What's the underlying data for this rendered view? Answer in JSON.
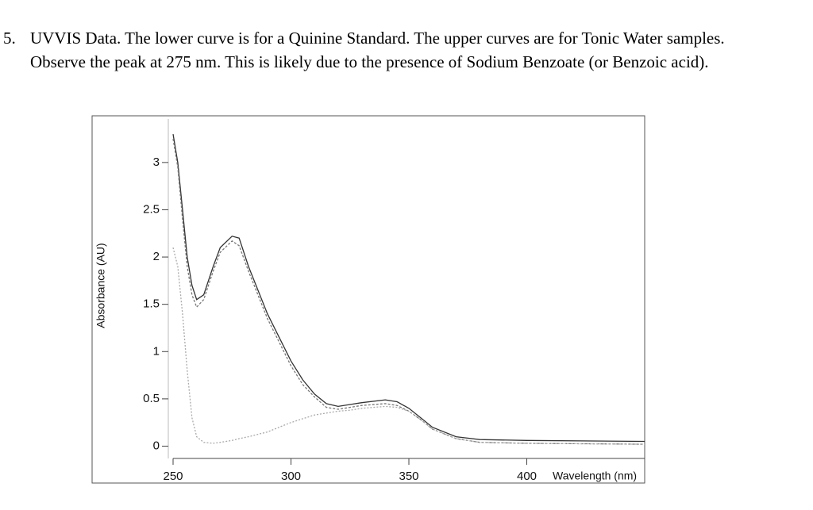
{
  "question": {
    "number": "5.",
    "lines": [
      "UVVIS Data.  The lower curve is for a Quinine Standard.  The upper curves are for Tonic Water samples.",
      "Observe the peak at 275 nm.  This is likely due to the presence of Sodium Benzoate (or Benzoic acid)."
    ]
  },
  "chart_data": {
    "type": "line",
    "x_label": "Wavelength (nm)",
    "y_label": "Absorbance (AU)",
    "x": [
      250,
      252,
      254,
      256,
      258,
      260,
      263,
      267,
      270,
      275,
      278,
      282,
      290,
      300,
      305,
      310,
      315,
      320,
      325,
      330,
      340,
      345,
      350,
      355,
      360,
      370,
      380,
      400,
      450
    ],
    "series": [
      {
        "color": "#333333",
        "dash": "none",
        "values": [
          3.3,
          3.0,
          2.5,
          2.0,
          1.7,
          1.55,
          1.6,
          1.9,
          2.1,
          2.22,
          2.2,
          1.9,
          1.4,
          0.9,
          0.7,
          0.55,
          0.45,
          0.42,
          0.44,
          0.46,
          0.49,
          0.47,
          0.4,
          0.3,
          0.2,
          0.1,
          0.07,
          0.06,
          0.05
        ]
      },
      {
        "color": "#777777",
        "dash": "3 2",
        "values": [
          3.25,
          2.95,
          2.4,
          1.9,
          1.6,
          1.47,
          1.55,
          1.85,
          2.05,
          2.17,
          2.12,
          1.85,
          1.35,
          0.85,
          0.65,
          0.52,
          0.41,
          0.39,
          0.41,
          0.43,
          0.45,
          0.43,
          0.37,
          0.28,
          0.18,
          0.08,
          0.04,
          0.03,
          0.02
        ]
      },
      {
        "color": "#aaaaaa",
        "dash": "2 2",
        "values": [
          2.1,
          1.9,
          1.4,
          0.8,
          0.3,
          0.1,
          0.04,
          0.03,
          0.04,
          0.06,
          0.08,
          0.1,
          0.15,
          0.25,
          0.29,
          0.33,
          0.35,
          0.37,
          0.38,
          0.4,
          0.42,
          0.41,
          0.37,
          0.28,
          0.18,
          0.08,
          0.04,
          0.03,
          0.02
        ]
      }
    ],
    "xlim": [
      250,
      450
    ],
    "xticks": [
      250,
      300,
      350,
      400
    ],
    "ylim": [
      -0.13,
      3.46
    ],
    "yticks": [
      0,
      0.5,
      1,
      1.5,
      2,
      2.5,
      3
    ]
  }
}
